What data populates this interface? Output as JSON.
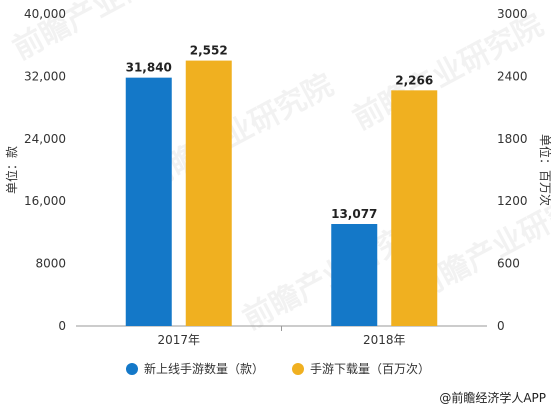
{
  "chart_data": {
    "type": "bar",
    "categories": [
      "2017年",
      "2018年"
    ],
    "series": [
      {
        "name": "新上线手游数量（款）",
        "values": [
          31840,
          13077
        ],
        "labels": [
          "31,840",
          "13,077"
        ],
        "axis": "left",
        "color": "#1478c8"
      },
      {
        "name": "手游下载量（百万次）",
        "values": [
          2552,
          2266
        ],
        "labels": [
          "2,552",
          "2,266"
        ],
        "axis": "right",
        "color": "#f0b020"
      }
    ],
    "y_left": {
      "label": "单位：款",
      "range": [
        0,
        40000
      ],
      "ticks": [
        0,
        8000,
        16000,
        24000,
        32000,
        40000
      ],
      "tick_labels": [
        "0",
        "8000",
        "16,000",
        "24,000",
        "32,000",
        "40,000"
      ]
    },
    "y_right": {
      "label": "单位：百万次",
      "range": [
        0,
        3000
      ],
      "ticks": [
        0,
        600,
        1200,
        1800,
        2400,
        3000
      ],
      "tick_labels": [
        "0",
        "600",
        "1200",
        "1800",
        "2400",
        "3000"
      ]
    },
    "grid": false,
    "legend_position": "bottom"
  },
  "footer": {
    "source": "@前瞻经济学人APP"
  },
  "watermark": "前瞻产业研究院"
}
